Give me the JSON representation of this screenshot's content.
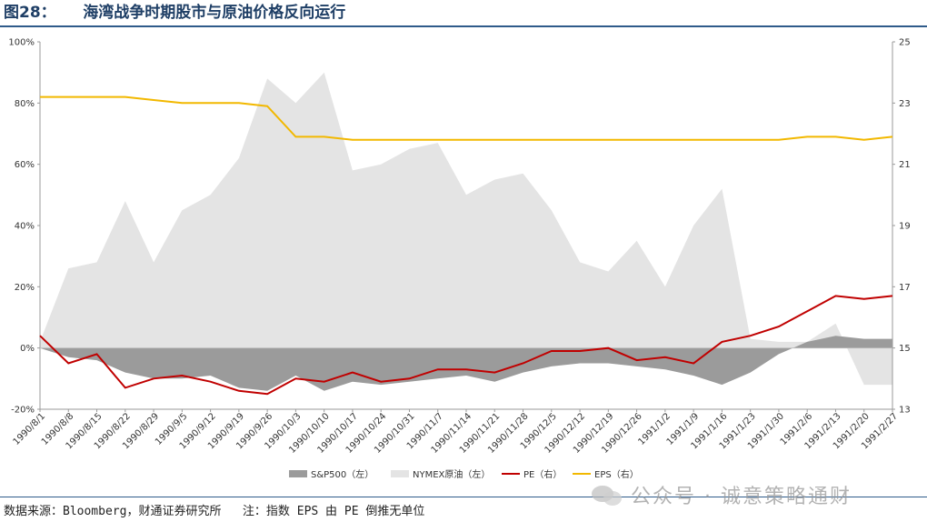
{
  "figure_title": "图28：     海湾战争时期股市与原油价格反向运行",
  "source_note": "数据来源：Bloomberg，财通证券研究所   注：指数 EPS 由 PE 倒推无单位",
  "watermark": "公众号 · 诚意策略通财",
  "colors": {
    "title": "#1f3f66",
    "sp500": "#9b9b9b",
    "oil": "#e4e4e4",
    "pe": "#c00000",
    "eps": "#f2b800"
  },
  "chart_data": {
    "type": "area",
    "title": "海湾战争时期股市与原油价格反向运行",
    "x": [
      "1990/8/1",
      "1990/8/8",
      "1990/8/15",
      "1990/8/22",
      "1990/8/29",
      "1990/9/5",
      "1990/9/12",
      "1990/9/19",
      "1990/9/26",
      "1990/10/3",
      "1990/10/10",
      "1990/10/17",
      "1990/10/24",
      "1990/10/31",
      "1990/11/7",
      "1990/11/14",
      "1990/11/21",
      "1990/11/28",
      "1990/12/5",
      "1990/12/12",
      "1990/12/19",
      "1990/12/26",
      "1991/1/2",
      "1991/1/9",
      "1991/1/16",
      "1991/1/23",
      "1991/1/30",
      "1991/2/6",
      "1991/2/13",
      "1991/2/20",
      "1991/2/27"
    ],
    "y_left": {
      "min": -20,
      "max": 100,
      "ticks": [
        "-20%",
        "0%",
        "20%",
        "40%",
        "60%",
        "80%",
        "100%"
      ]
    },
    "y_right": {
      "min": 13,
      "max": 25,
      "ticks": [
        "13",
        "15",
        "17",
        "19",
        "21",
        "23",
        "25"
      ]
    },
    "legend_position": "bottom",
    "series": [
      {
        "name": "S&P500（左）",
        "type": "area",
        "axis": "left",
        "values": [
          0,
          -3,
          -4,
          -8,
          -10,
          -10,
          -9,
          -13,
          -14,
          -9,
          -14,
          -11,
          -12,
          -11,
          -10,
          -9,
          -11,
          -8,
          -6,
          -5,
          -5,
          -6,
          -7,
          -9,
          -12,
          -8,
          -2,
          2,
          4,
          3,
          3
        ]
      },
      {
        "name": "NYMEX原油（左）",
        "type": "area",
        "axis": "left",
        "values": [
          2,
          26,
          28,
          48,
          28,
          45,
          50,
          62,
          88,
          80,
          90,
          58,
          60,
          65,
          67,
          50,
          55,
          57,
          45,
          28,
          25,
          35,
          20,
          40,
          52,
          3,
          2,
          2,
          8,
          -12,
          -12
        ]
      },
      {
        "name": "PE（右）",
        "type": "line",
        "axis": "right",
        "values": [
          15.4,
          14.5,
          14.8,
          13.7,
          14.0,
          14.1,
          13.9,
          13.6,
          13.5,
          14.0,
          13.9,
          14.2,
          13.9,
          14.0,
          14.3,
          14.3,
          14.2,
          14.5,
          14.9,
          14.9,
          15.0,
          14.6,
          14.7,
          14.5,
          15.2,
          15.4,
          15.7,
          16.2,
          16.7,
          16.6,
          16.7
        ]
      },
      {
        "name": "EPS（右）",
        "type": "line",
        "axis": "right",
        "values": [
          23.2,
          23.2,
          23.2,
          23.2,
          23.1,
          23.0,
          23.0,
          23.0,
          22.9,
          21.9,
          21.9,
          21.8,
          21.8,
          21.8,
          21.8,
          21.8,
          21.8,
          21.8,
          21.8,
          21.8,
          21.8,
          21.8,
          21.8,
          21.8,
          21.8,
          21.8,
          21.8,
          21.9,
          21.9,
          21.8,
          21.9
        ]
      }
    ]
  }
}
